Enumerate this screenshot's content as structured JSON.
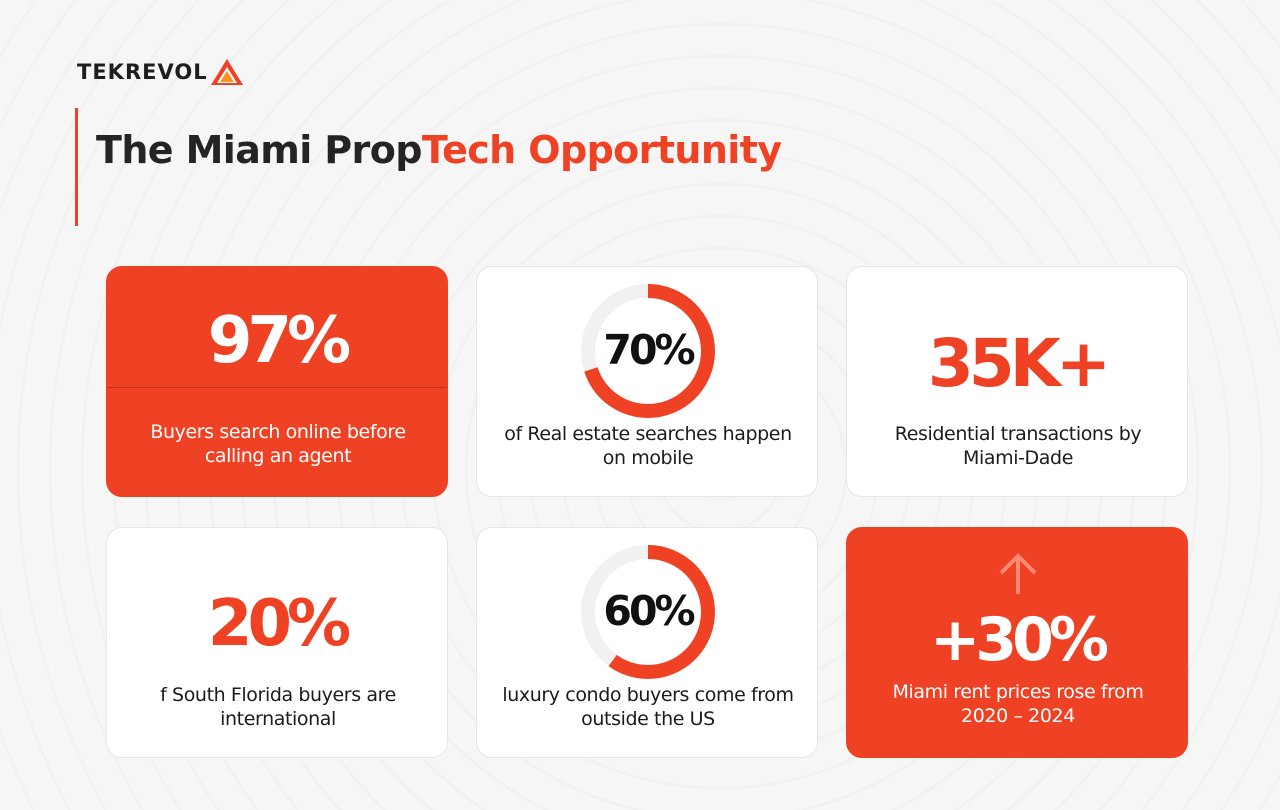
{
  "brand": {
    "logo_text": "TEKREVOL",
    "accent_color": "#ef4123"
  },
  "header": {
    "title_part1": "The Miami Prop",
    "title_part2": "Tech Opportunity"
  },
  "stats": [
    {
      "value": "97%",
      "description": "Buyers search online before calling an agent",
      "style": "red"
    },
    {
      "value": "70%",
      "description": "of Real estate searches happen on mobile",
      "style": "ring",
      "ring_fraction": 0.7
    },
    {
      "value": "35K+",
      "description": "Residential transactions by Miami-Dade",
      "style": "white"
    },
    {
      "value": "20%",
      "description": "f South Florida buyers are international",
      "style": "white"
    },
    {
      "value": "60%",
      "description": "luxury condo buyers come from outside the US",
      "style": "ring",
      "ring_fraction": 0.6
    },
    {
      "value": "+30%",
      "description": "Miami rent prices rose from 2020 – 2024",
      "style": "red",
      "icon": "arrow-up-icon"
    }
  ]
}
